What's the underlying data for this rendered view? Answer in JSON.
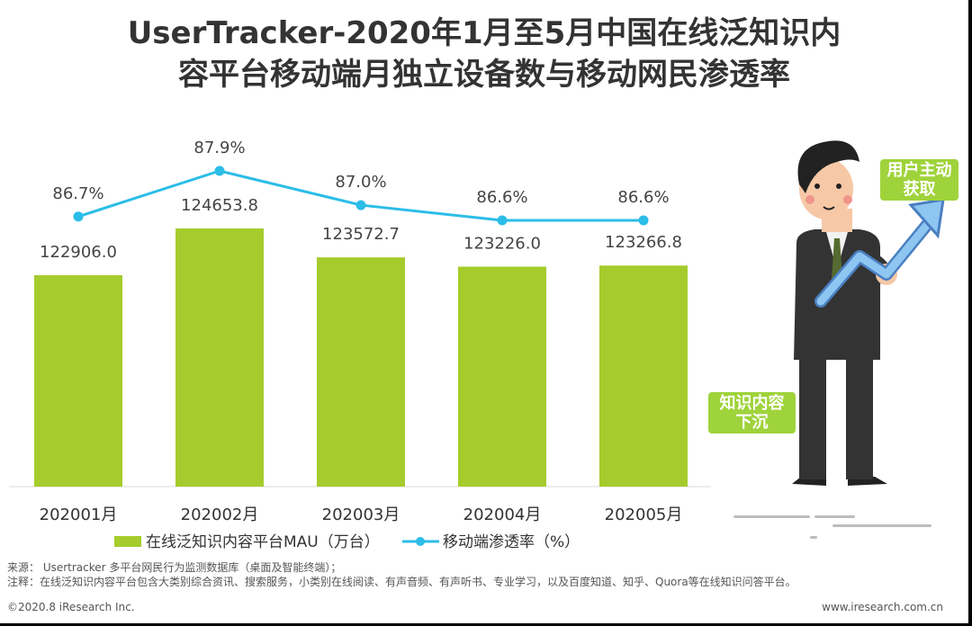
{
  "title_lines": [
    "UserTracker-2020年1月至5月中国在线泛知识内",
    "容平台移动端月独立设备数与移动网民渗透率"
  ],
  "chart_data": {
    "type": "bar",
    "categories": [
      "202001月",
      "202002月",
      "202003月",
      "202004月",
      "202005月"
    ],
    "series": [
      {
        "name": "在线泛知识内容平台MAU（万台）",
        "type": "bar",
        "values": [
          122906.0,
          124653.8,
          123572.7,
          123226.0,
          123266.8
        ],
        "labels": [
          "122906.0",
          "124653.8",
          "123572.7",
          "123226.0",
          "123266.8"
        ],
        "color": "#a5cc2c"
      },
      {
        "name": "移动端渗透率（%）",
        "type": "line",
        "values": [
          86.7,
          87.9,
          87.0,
          86.6,
          86.6
        ],
        "labels": [
          "86.7%",
          "87.9%",
          "87.0%",
          "86.6%",
          "86.6%"
        ],
        "color": "#2bbde8"
      }
    ],
    "legend_position": "bottom",
    "grid": false
  },
  "illustration": {
    "tag_top": [
      "用户主动",
      "获取"
    ],
    "tag_bottom": [
      "知识内容",
      "下沉"
    ],
    "icons": [
      "businessman-figure",
      "arrow-up-icon"
    ]
  },
  "footnotes": {
    "source": "来源： Usertracker 多平台网民行为监测数据库（桌面及智能终端）；",
    "note": "注释：在线泛知识内容平台包含大类别综合资讯、搜索服务，小类别在线阅读、有声音频、有声听书、专业学习，以及百度知道、知乎、Quora等在线知识问答平台。"
  },
  "copyright": "©2020.8 iResearch Inc.",
  "website": "www.iresearch.com.cn"
}
